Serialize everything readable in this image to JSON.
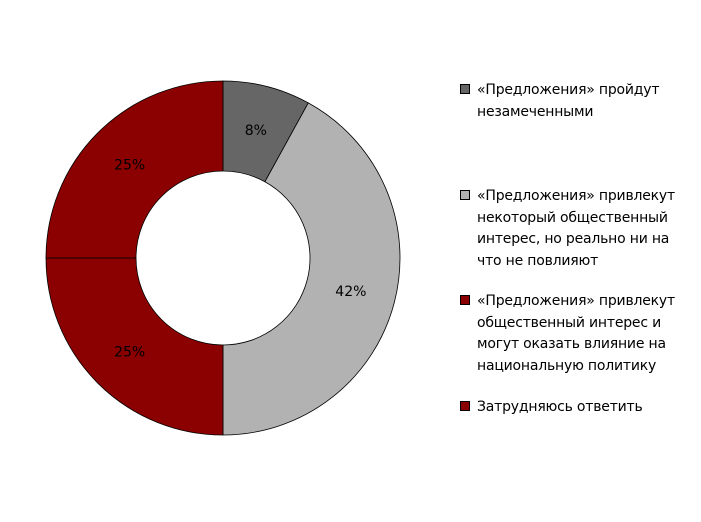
{
  "chart_data": {
    "type": "pie",
    "variant": "donut",
    "categories": [
      "«Предложения» пройдут незамеченными",
      "«Предложения» привлекут некоторый общественный интерес, но реально ни на что не повлияют",
      "«Предложения» привлекут общественный интерес и могут оказать влияние на национальную политику",
      "Затрудняюсь ответить"
    ],
    "values": [
      8,
      42,
      25,
      25
    ],
    "value_labels": [
      "8%",
      "42%",
      "25%",
      "25%"
    ],
    "colors": [
      "#666666",
      "#b2b2b2",
      "#8b0000",
      "#8b0000"
    ],
    "legend_position": "right",
    "title": ""
  },
  "legend": {
    "items": [
      {
        "label": "«Предложения» пройдут незамеченными",
        "color": "#666666"
      },
      {
        "label": "«Предложения» привлекут некоторый общественный интерес, но реально ни на что не повлияют",
        "color": "#b2b2b2"
      },
      {
        "label": "«Предложения» привлекут общественный интерес и могут оказать влияние на национальную политику",
        "color": "#8b0000"
      },
      {
        "label": "Затрудняюсь ответить",
        "color": "#8b0000"
      }
    ]
  }
}
